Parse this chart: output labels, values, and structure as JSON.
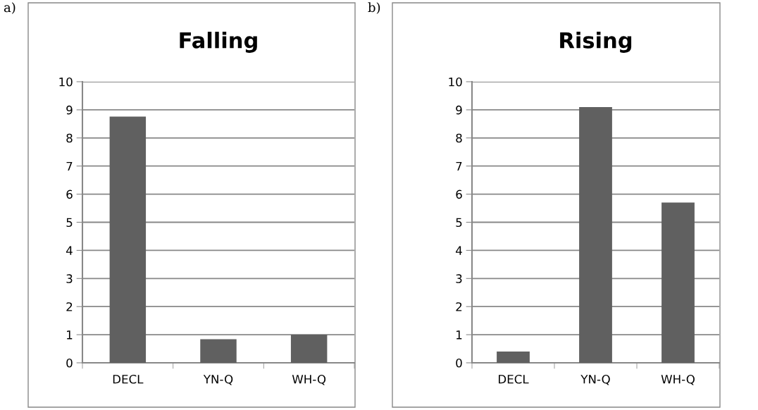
{
  "chart_data": [
    {
      "type": "bar",
      "title": "Falling",
      "annotations": [
        "a)"
      ],
      "categories": [
        "DECL",
        "YN-Q",
        "WH-Q"
      ],
      "values": [
        8.76,
        0.84,
        1.0
      ],
      "color": "#606060",
      "ylim": [
        0,
        10
      ],
      "yticks": [
        0,
        1,
        2,
        3,
        4,
        5,
        6,
        7,
        8,
        9,
        10
      ],
      "grid": "y"
    },
    {
      "type": "bar",
      "title": "Rising",
      "annotations": [
        "b)"
      ],
      "categories": [
        "DECL",
        "YN-Q",
        "WH-Q"
      ],
      "values": [
        0.4,
        9.1,
        5.7
      ],
      "color": "#606060",
      "ylim": [
        0,
        10
      ],
      "yticks": [
        0,
        1,
        2,
        3,
        4,
        5,
        6,
        7,
        8,
        9,
        10
      ],
      "grid": "y"
    }
  ]
}
